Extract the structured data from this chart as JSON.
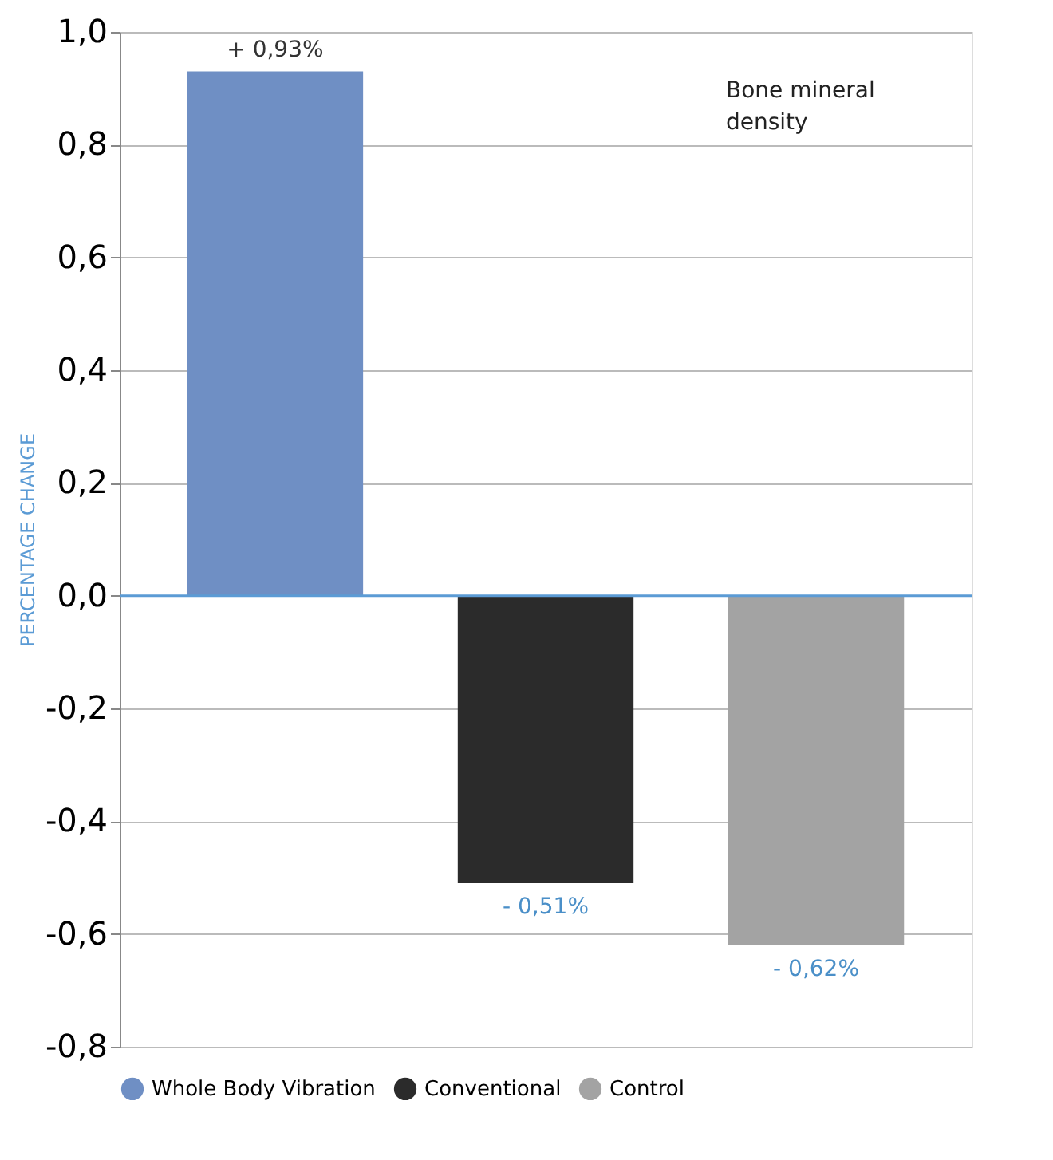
{
  "chart_data": {
    "type": "bar",
    "categories": [
      null,
      null,
      null
    ],
    "series": [
      {
        "name": "Whole Body Vibration",
        "color": "#6f8fc4",
        "values": [
          0.93,
          null,
          null
        ],
        "value_labels": [
          "+ 0,93%",
          null,
          null
        ]
      },
      {
        "name": "Conventional",
        "color": "#2b2b2b",
        "values": [
          null,
          -0.51,
          null
        ],
        "value_labels": [
          null,
          "- 0,51%",
          null
        ]
      },
      {
        "name": "Control",
        "color": "#a3a3a3",
        "values": [
          null,
          null,
          -0.62
        ],
        "value_labels": [
          null,
          null,
          "- 0,62%"
        ]
      }
    ],
    "ylabel": "PERCENTAGE CHANGE",
    "ylim": [
      -0.8,
      1.0
    ],
    "yticks": [
      {
        "value": -0.8,
        "label": "-0,8"
      },
      {
        "value": -0.6,
        "label": "-0,6"
      },
      {
        "value": -0.4,
        "label": "-0,4"
      },
      {
        "value": -0.2,
        "label": "-0,2"
      },
      {
        "value": 0.0,
        "label": "0,0"
      },
      {
        "value": 0.2,
        "label": "0,2"
      },
      {
        "value": 0.4,
        "label": "0,4"
      },
      {
        "value": 0.6,
        "label": "0,6"
      },
      {
        "value": 0.8,
        "label": "0,8"
      },
      {
        "value": 1.0,
        "label": "1,0"
      }
    ],
    "ref_lines": [
      {
        "axis": "y",
        "value": 0,
        "color": "#5b9bd5"
      }
    ],
    "annotations": [
      "Bone mineral density"
    ],
    "grid": "y",
    "legend": "bottom",
    "tick_labels": "y"
  }
}
